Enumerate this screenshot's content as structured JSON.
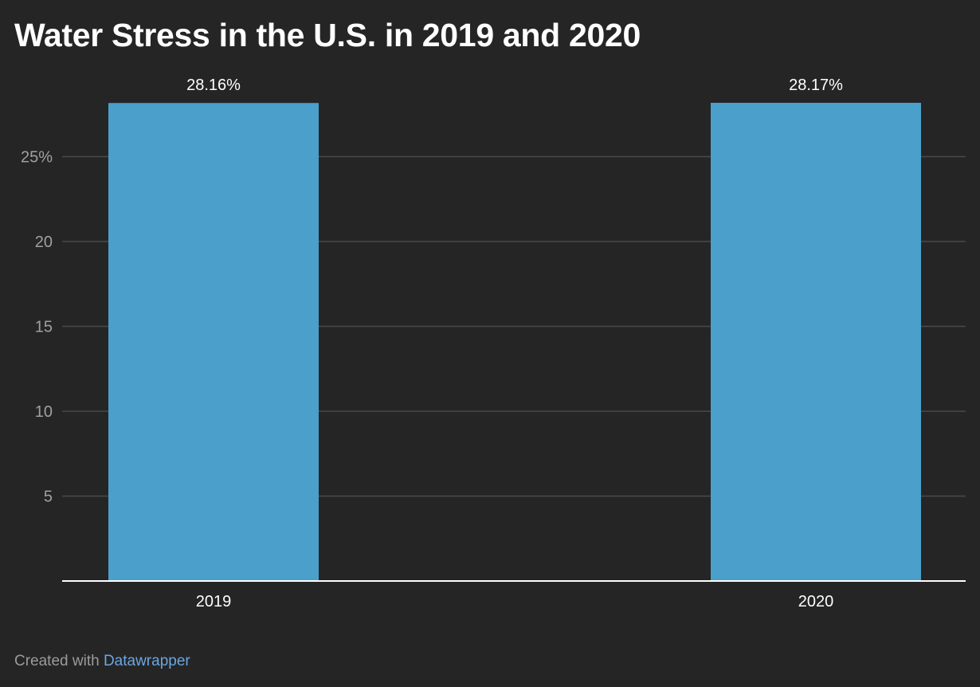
{
  "chart_data": {
    "type": "bar",
    "title": "Water Stress in the U.S. in 2019 and 2020",
    "categories": [
      "2019",
      "2020"
    ],
    "values": [
      28.16,
      28.17
    ],
    "value_labels": [
      "28.16%",
      "28.17%"
    ],
    "y_ticks": [
      5,
      10,
      15,
      20,
      25
    ],
    "y_tick_labels": [
      "5",
      "10",
      "15",
      "20",
      "25%"
    ],
    "ylim": [
      0,
      28.17
    ],
    "xlabel": "",
    "ylabel": "",
    "grid": true,
    "legend": "none",
    "bar_color": "#4a9fcb",
    "background_color": "#252525",
    "gridline_color": "#4a4a4a",
    "axis_color": "#ffffff",
    "tick_label_color": "#a0a0a0",
    "label_color": "#ffffff"
  },
  "footer": {
    "prefix": "Created with",
    "link_text": "Datawrapper",
    "link_color": "#6aa6e0"
  }
}
